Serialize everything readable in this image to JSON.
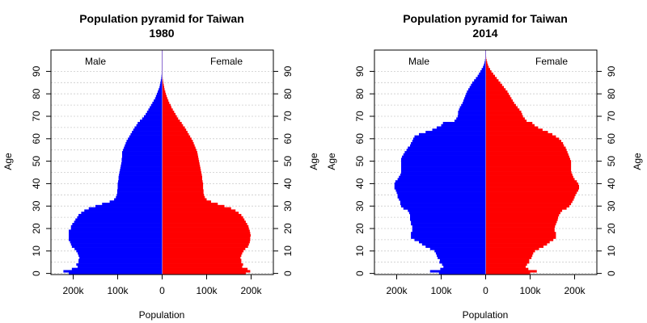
{
  "colors": {
    "male": "#0000ff",
    "female": "#ff0000",
    "grid": "#cccccc",
    "axis": "#000000",
    "center": "#8b6bd0"
  },
  "chart_data": [
    {
      "type": "bar",
      "orientation": "horizontal-pyramid",
      "title": "Population pyramid for Taiwan",
      "subtitle": "1980",
      "xlabel": "Population",
      "ylabel": "Age",
      "legend": {
        "left": "Male",
        "right": "Female"
      },
      "x_ticks": [
        "200k",
        "100k",
        "0",
        "100k",
        "200k"
      ],
      "y_ticks": [
        "0",
        "10",
        "20",
        "30",
        "40",
        "50",
        "60",
        "70",
        "80",
        "90"
      ],
      "xlim": [
        -250000,
        250000
      ],
      "ylim": [
        0,
        100
      ],
      "grid": true,
      "series": [
        {
          "name": "Male",
          "values": [
            210000,
            222000,
            203000,
            190000,
            193000,
            188000,
            188000,
            186000,
            188000,
            190000,
            193000,
            197000,
            203000,
            205000,
            207000,
            210000,
            210000,
            210000,
            210000,
            210000,
            205000,
            205000,
            202000,
            198000,
            195000,
            191000,
            188000,
            182000,
            175000,
            165000,
            150000,
            135000,
            118000,
            108000,
            104000,
            102000,
            101000,
            101000,
            100000,
            100000,
            100000,
            99000,
            98000,
            98000,
            97000,
            96000,
            95000,
            94000,
            93000,
            92000,
            91000,
            91000,
            90000,
            90000,
            90000,
            88000,
            86000,
            84000,
            82000,
            80000,
            77000,
            74000,
            71000,
            68000,
            65000,
            62000,
            58000,
            55000,
            50000,
            45000,
            41000,
            37000,
            34000,
            31000,
            28000,
            25000,
            22000,
            19000,
            16000,
            14000,
            12000,
            10000,
            8000,
            6000,
            5000,
            4000,
            3000,
            2000,
            1500,
            1000,
            700,
            400,
            200,
            100,
            50,
            20,
            10,
            5,
            2,
            0
          ]
        },
        {
          "name": "Female",
          "values": [
            188000,
            198000,
            192000,
            180000,
            182000,
            178000,
            178000,
            176000,
            178000,
            180000,
            183000,
            187000,
            193000,
            195000,
            197000,
            198000,
            198000,
            199000,
            198000,
            197000,
            195000,
            194000,
            191000,
            188000,
            185000,
            182000,
            178000,
            172000,
            165000,
            155000,
            140000,
            125000,
            110000,
            100000,
            96000,
            94000,
            93000,
            93000,
            92000,
            92000,
            92000,
            91000,
            90000,
            90000,
            89000,
            88000,
            87000,
            86000,
            85000,
            84000,
            83000,
            82000,
            81000,
            80000,
            79000,
            77000,
            75000,
            73000,
            71000,
            69000,
            66000,
            63000,
            60000,
            57000,
            54000,
            51000,
            47000,
            44000,
            40000,
            36000,
            33000,
            30000,
            27000,
            24000,
            21000,
            19000,
            16000,
            14000,
            12000,
            10000,
            8500,
            7000,
            5500,
            4500,
            3500,
            2500,
            1800,
            1200,
            800,
            500,
            300,
            150,
            80,
            40,
            20,
            10,
            5,
            2,
            1,
            0
          ]
        }
      ]
    },
    {
      "type": "bar",
      "orientation": "horizontal-pyramid",
      "title": "Population pyramid for Taiwan",
      "subtitle": "2014",
      "xlabel": "Population",
      "ylabel": "Age",
      "legend": {
        "left": "Male",
        "right": "Female"
      },
      "x_ticks": [
        "200k",
        "100k",
        "0",
        "100k",
        "200k"
      ],
      "y_ticks": [
        "0",
        "10",
        "20",
        "30",
        "40",
        "50",
        "60",
        "70",
        "80",
        "90"
      ],
      "xlim": [
        -250000,
        250000
      ],
      "ylim": [
        0,
        100
      ],
      "grid": true,
      "series": [
        {
          "name": "Male",
          "values": [
            105000,
            125000,
            102000,
            95000,
            98000,
            104000,
            103000,
            108000,
            110000,
            112000,
            115000,
            125000,
            135000,
            143000,
            150000,
            160000,
            168000,
            168000,
            168000,
            165000,
            165000,
            165000,
            168000,
            168000,
            170000,
            170000,
            170000,
            172000,
            175000,
            185000,
            190000,
            192000,
            192000,
            195000,
            198000,
            198000,
            200000,
            202000,
            205000,
            205000,
            205000,
            203000,
            198000,
            195000,
            192000,
            190000,
            190000,
            190000,
            190000,
            190000,
            190000,
            190000,
            188000,
            185000,
            182000,
            178000,
            175000,
            170000,
            168000,
            165000,
            163000,
            160000,
            150000,
            135000,
            120000,
            110000,
            100000,
            96000,
            70000,
            66000,
            63000,
            62000,
            62000,
            60000,
            58000,
            55000,
            52000,
            50000,
            48000,
            46000,
            44000,
            42000,
            39000,
            36000,
            33000,
            30000,
            26000,
            22000,
            18000,
            15000,
            12000,
            9000,
            6000,
            4000,
            2500,
            1500,
            800,
            400,
            200,
            50
          ]
        },
        {
          "name": "Female",
          "values": [
            100000,
            115000,
            96000,
            90000,
            93000,
            98000,
            98000,
            103000,
            105000,
            107000,
            111000,
            120000,
            130000,
            138000,
            144000,
            152000,
            158000,
            158000,
            158000,
            155000,
            155000,
            156000,
            158000,
            160000,
            162000,
            163000,
            165000,
            168000,
            172000,
            182000,
            188000,
            192000,
            195000,
            198000,
            200000,
            202000,
            205000,
            208000,
            210000,
            210000,
            208000,
            205000,
            200000,
            197000,
            195000,
            193000,
            192000,
            192000,
            192000,
            192000,
            192000,
            190000,
            188000,
            186000,
            184000,
            182000,
            180000,
            176000,
            174000,
            170000,
            165000,
            158000,
            150000,
            140000,
            128000,
            118000,
            110000,
            105000,
            92000,
            88000,
            84000,
            82000,
            80000,
            76000,
            72000,
            68000,
            64000,
            61000,
            58000,
            55000,
            52000,
            49000,
            45000,
            41000,
            37000,
            33000,
            29000,
            25000,
            21000,
            17000,
            13000,
            10000,
            7000,
            5000,
            3500,
            2200,
            1200,
            600,
            300,
            100
          ]
        }
      ]
    }
  ]
}
